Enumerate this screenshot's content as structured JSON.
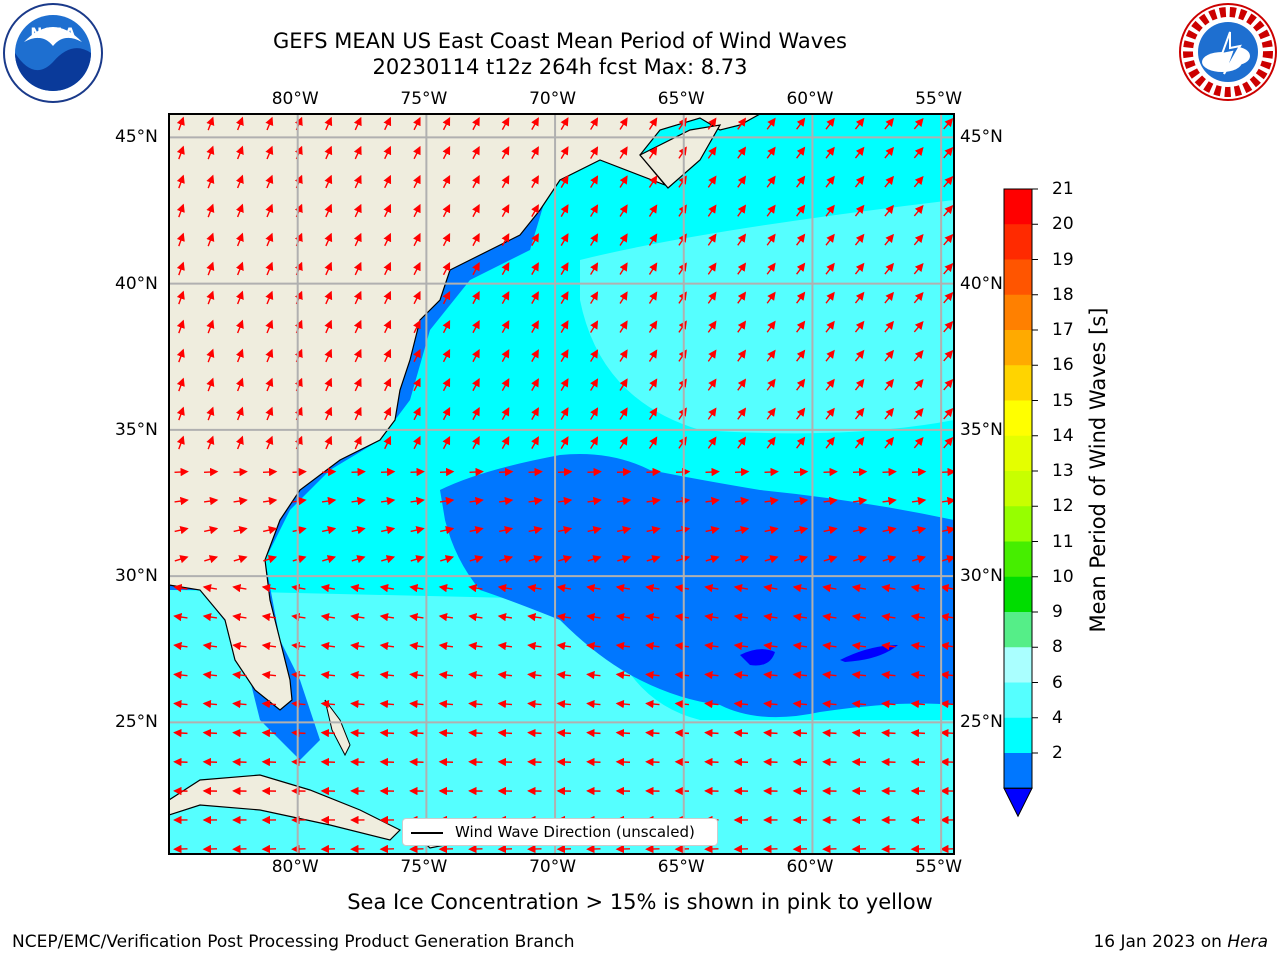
{
  "title_line1": "GEFS MEAN US East Coast Mean Period of Wind Waves",
  "title_line2": "20230114 t12z 264h fcst   Max: 8.73",
  "subtitle": "Sea Ice Concentration > 15% is shown in pink to yellow",
  "footer_left": "NCEP/EMC/Verification Post Processing Product Generation Branch",
  "footer_right_date": "16 Jan 2023 on",
  "footer_right_machine": "Hera",
  "legend_label": "Wind Wave Direction (unscaled)",
  "logos": {
    "left": "noaa-logo",
    "right": "nws-logo"
  },
  "map": {
    "lon_labels": [
      "80°W",
      "75°W",
      "70°W",
      "65°W",
      "60°W",
      "55°W"
    ],
    "lat_labels": [
      "45°N",
      "40°N",
      "35°N",
      "30°N",
      "25°N"
    ],
    "lon_range": [
      -85,
      -54.5
    ],
    "lat_range": [
      20.5,
      45.8
    ],
    "land_color": "#efedde",
    "coast_color": "#000000",
    "grid_color": "#b0b0b0",
    "arrow_color": "#ff0000"
  },
  "colorbar": {
    "label": "Mean Period of Wind Waves [s]",
    "ticks": [
      "21",
      "20",
      "19",
      "18",
      "17",
      "16",
      "15",
      "14",
      "13",
      "12",
      "11",
      "10",
      "9",
      "8",
      "6",
      "4",
      "2"
    ],
    "colors": [
      "#ff0000",
      "#ff2a00",
      "#ff5500",
      "#ff8000",
      "#ffaa00",
      "#ffd400",
      "#ffff00",
      "#e4ff00",
      "#c8ff00",
      "#96ff00",
      "#46ee00",
      "#00dd00",
      "#55ee88",
      "#aaffff",
      "#55ffff",
      "#00ffff",
      "#0077ff"
    ],
    "under_color": "#0000ff"
  }
}
